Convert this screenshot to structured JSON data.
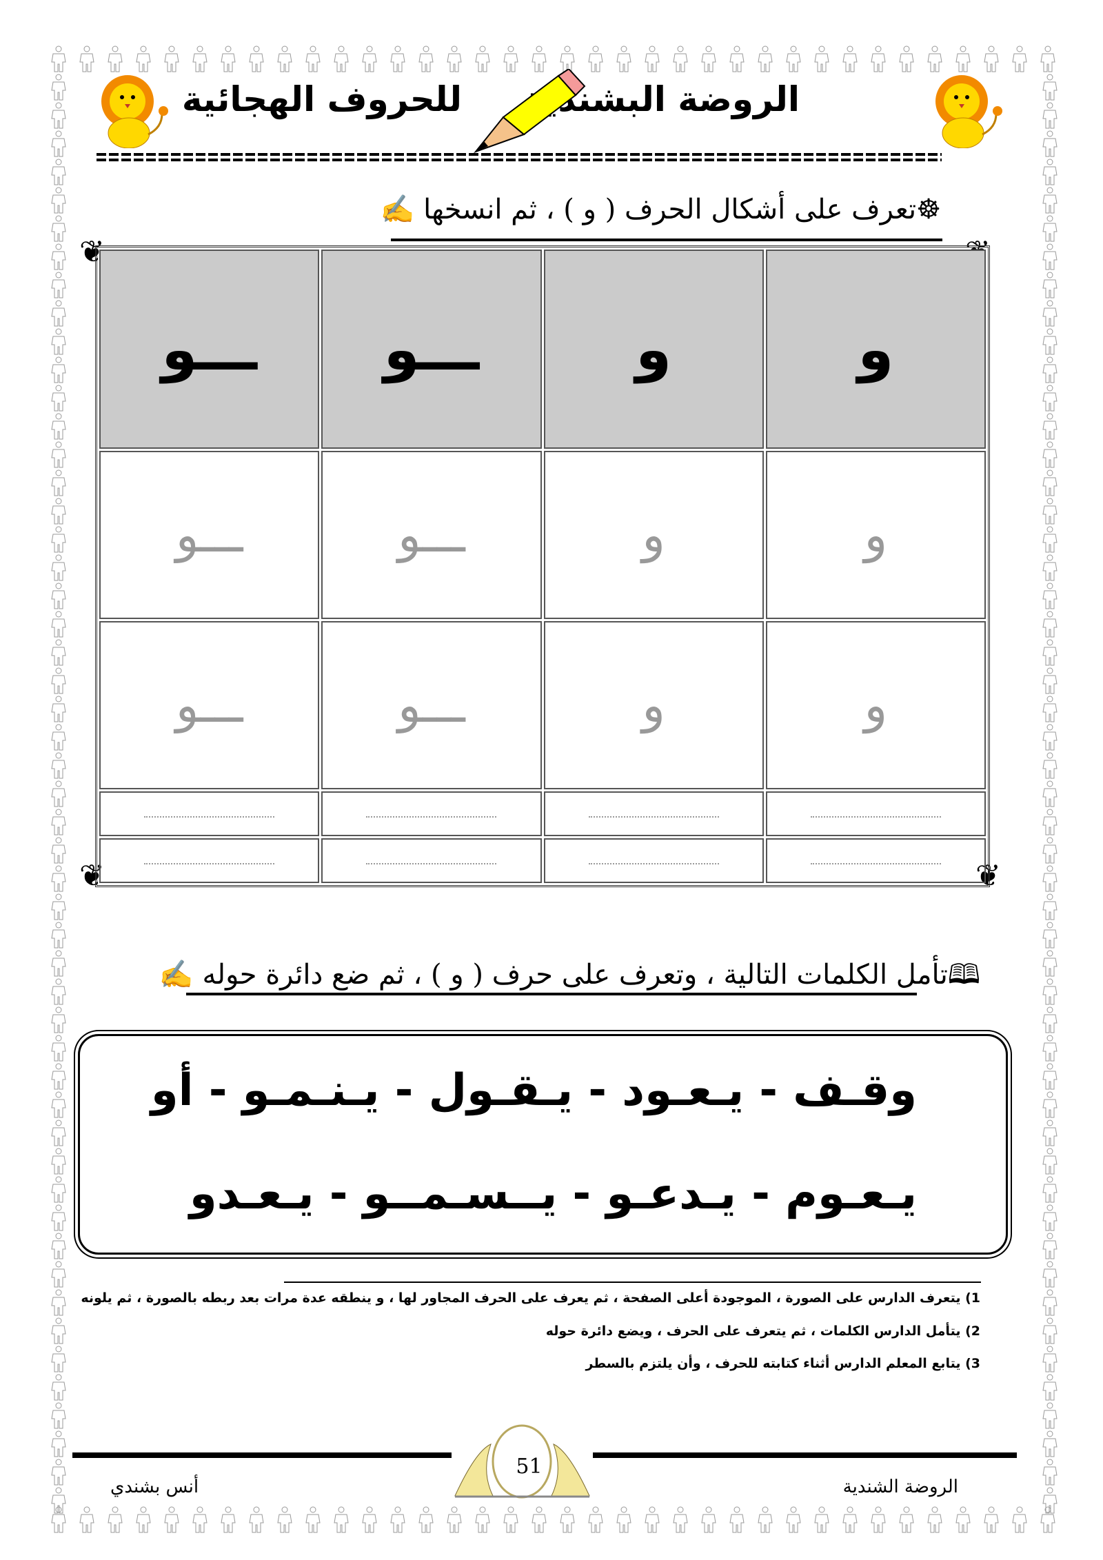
{
  "header": {
    "school_title": "الروضة البشندية",
    "book_title": "للحروف الهجائية",
    "icons": [
      "lion-icon",
      "pencil-icon",
      "lion-icon"
    ]
  },
  "section1": {
    "instruction": "تعرف على أشكال الحرف ( و ) ، ثم انسخها",
    "bullet_icon": "ship-wheel-icon",
    "end_icon": "writing-hand-icon"
  },
  "letter_table": {
    "header": [
      "و",
      "و",
      "ـــو",
      "ـــو"
    ],
    "trace_rows": [
      [
        "و",
        "و",
        "ـــو",
        "ـــو"
      ],
      [
        "و",
        "و",
        "ـــو",
        "ـــو"
      ]
    ],
    "header_bg": "#cbcbcb",
    "trace_color": "#999999"
  },
  "section2": {
    "instruction": "تأمل الكلمات التالية ، وتعرف على حرف ( و ) ، ثم ضع دائرة حوله",
    "bullet_icon": "open-book-icon",
    "end_icon": "writing-hand-icon"
  },
  "words": {
    "line1": "وقـف - يـعـود - يـقـول - يـنـمـو - أو",
    "line2": "يـعـوم - يـدعـو - يــسـمــو - يـعـدو"
  },
  "notes": [
    "1) يتعرف الدارس على الصورة ، الموجودة أعلى الصفحة ، ثم يعرف على الحرف المجاور لها ، و ينطقه عدة مرات بعد ربطه بالصورة ، ثم يلونه",
    "2) يتأمل الدارس الكلمات ، ثم يتعرف على الحرف ، ويضع دائرة حوله",
    "3) يتابع المعلم الدارس أثناء كتابته للحرف ، وأن يلتزم بالسطر"
  ],
  "footer": {
    "page_number": "51",
    "left_text": "أنس بشندي",
    "right_text": "الروضة الشندية"
  }
}
